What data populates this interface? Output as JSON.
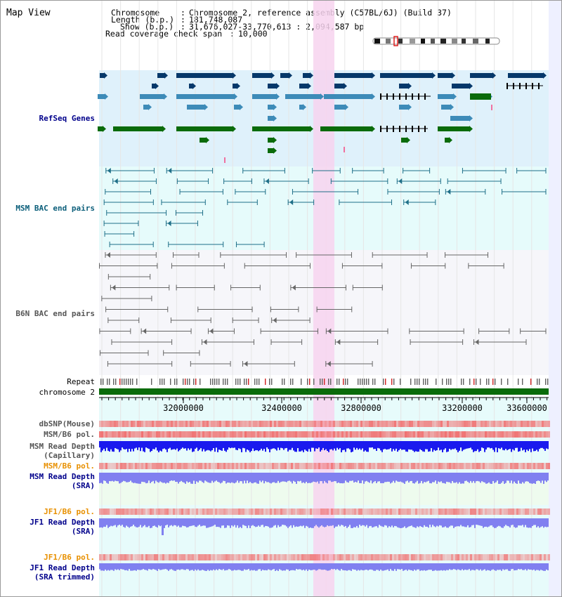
{
  "title": "Map View",
  "info": {
    "chromosome_key": "Chromosome   ",
    "chromosome_val": "Chromosome 2, reference assembly (C57BL/6J) (Build 37)",
    "length_key": "Length (b.p.)",
    "length_val": "181,748,087",
    "show_key": "Show (b.p.)",
    "show_val": "31,676,027-33,770,613 : 2,094,587 bp",
    "span_key": "Read coverage check span",
    "span_val": "10,000"
  },
  "tracks": {
    "refseq": "RefSeq Genes",
    "msm_bac": "MSM BAC end pairs",
    "b6n_bac": "B6N BAC end pairs",
    "repeat": "Repeat",
    "chromosome": "chromosome 2",
    "dbsnp": "dbSNP(Mouse)",
    "msm_b6_pol_1": "MSM/B6 pol.",
    "msm_depth_cap_1": "MSM Read Depth",
    "msm_depth_cap_2": "(Capillary)",
    "msm_b6_pol_2": "MSM/B6 pol.",
    "msm_depth_sra_1": "MSM Read Depth",
    "msm_depth_sra_2": "(SRA)",
    "jf1_b6_pol_1": "JF1/B6 pol.",
    "jf1_depth_sra_1": "JF1 Read Depth",
    "jf1_depth_sra_2": "(SRA)",
    "jf1_b6_pol_2": "JF1/B6 pol.",
    "jf1_depth_trim_1": "JF1 Read Depth",
    "jf1_depth_trim_2": "(SRA trimmed)"
  },
  "axis": {
    "ticks": [
      "32000000",
      "32400000",
      "32800000",
      "33200000",
      "33600000"
    ]
  },
  "colors": {
    "gene_dark": "#06386a",
    "gene_mid": "#3d8bb8",
    "gene_green": "#0a6b0a",
    "msm_line": "#1f6f88",
    "b6n_line": "#666666",
    "highlight": "#f7d3ef",
    "snp": "#f07070",
    "depth_dark": "#1a1aee",
    "depth_light": "#8080f0",
    "label_blue": "#00008b",
    "label_teal": "#0b5e7a",
    "label_orange": "#e89000"
  }
}
